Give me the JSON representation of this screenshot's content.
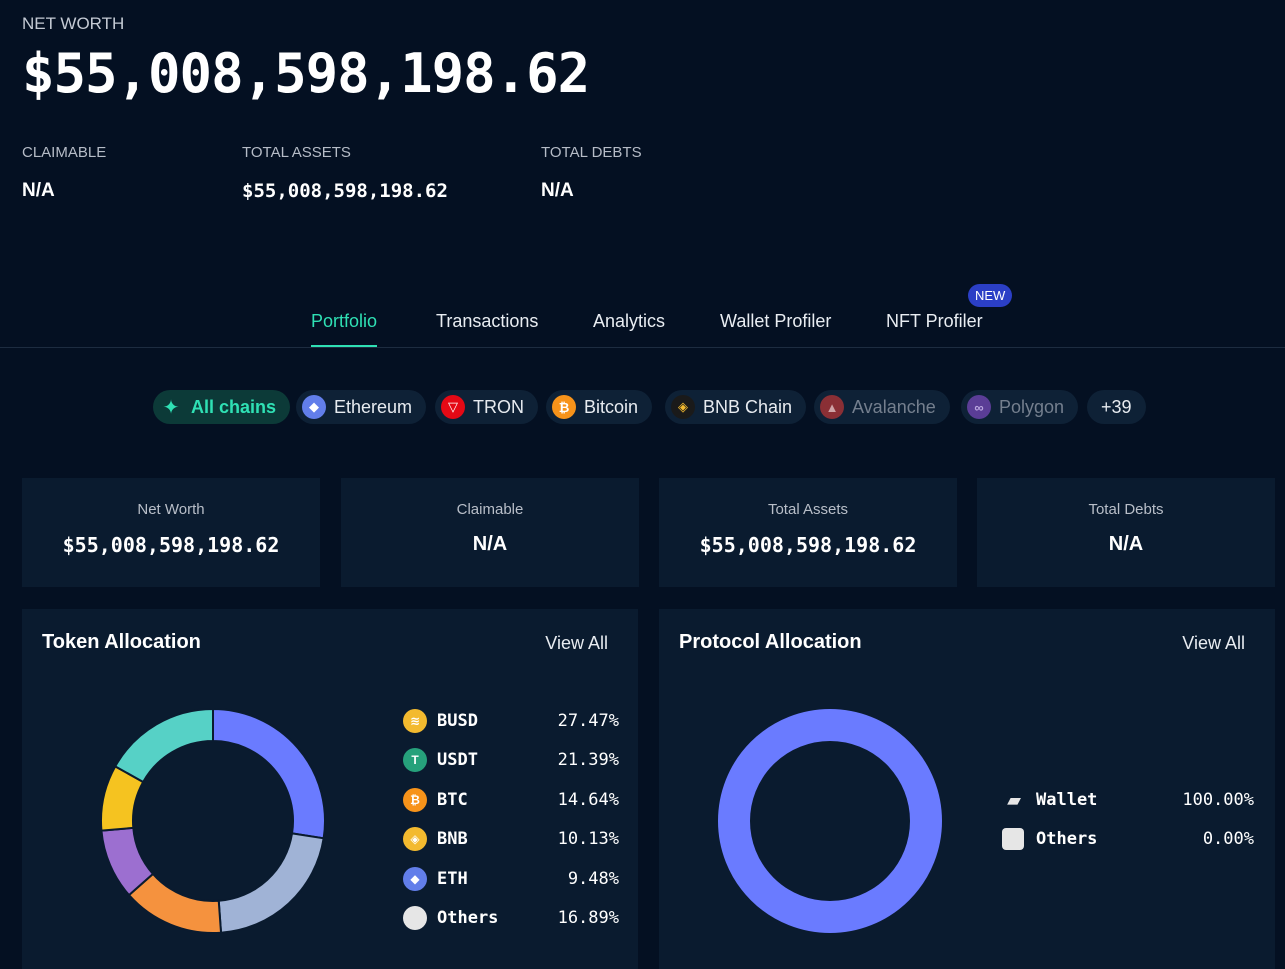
{
  "header": {
    "net_worth_label": "NET WORTH",
    "net_worth_value": "$55,008,598,198.62",
    "claimable_label": "CLAIMABLE",
    "claimable_value": "N/A",
    "total_assets_label": "TOTAL ASSETS",
    "total_assets_value": "$55,008,598,198.62",
    "total_debts_label": "TOTAL DEBTS",
    "total_debts_value": "N/A"
  },
  "tabs": [
    {
      "label": "Portfolio",
      "active": true
    },
    {
      "label": "Transactions",
      "active": false
    },
    {
      "label": "Analytics",
      "active": false
    },
    {
      "label": "Wallet Profiler",
      "active": false
    },
    {
      "label": "NFT Profiler",
      "active": false
    }
  ],
  "new_badge": "NEW",
  "chains": [
    {
      "label": "All chains",
      "icon": "sparkle-icon",
      "color": "#2fe0b4"
    },
    {
      "label": "Ethereum",
      "icon": "ethereum-icon",
      "color": "#627eea"
    },
    {
      "label": "TRON",
      "icon": "tron-icon",
      "color": "#e50915"
    },
    {
      "label": "Bitcoin",
      "icon": "bitcoin-icon",
      "color": "#f7931a"
    },
    {
      "label": "BNB Chain",
      "icon": "bnb-icon",
      "color": "#f3ba2f"
    },
    {
      "label": "Avalanche",
      "icon": "avalanche-icon",
      "color": "#8a2f35"
    },
    {
      "label": "Polygon",
      "icon": "polygon-icon",
      "color": "#5b3d96"
    },
    {
      "label": "+39"
    }
  ],
  "cards": [
    {
      "label": "Net Worth",
      "value": "$55,008,598,198.62"
    },
    {
      "label": "Claimable",
      "value": "N/A"
    },
    {
      "label": "Total Assets",
      "value": "$55,008,598,198.62"
    },
    {
      "label": "Total Debts",
      "value": "N/A"
    }
  ],
  "token_allocation": {
    "title": "Token Allocation",
    "view_all": "View All",
    "items": [
      {
        "name": "BUSD",
        "pct": "27.47%",
        "value": 27.47,
        "color": "#6a7bff",
        "icon_color": "#f3ba2f",
        "icon": "busd-icon"
      },
      {
        "name": "USDT",
        "pct": "21.39%",
        "value": 21.39,
        "color": "#a0b3d6",
        "icon_color": "#26a17b",
        "icon": "usdt-icon"
      },
      {
        "name": "BTC",
        "pct": "14.64%",
        "value": 14.64,
        "color": "#f5923e",
        "icon_color": "#f7931a",
        "icon": "bitcoin-icon"
      },
      {
        "name": "BNB",
        "pct": "10.13%",
        "value": 10.13,
        "color": "#9c6fd0",
        "icon_color": "#f3ba2f",
        "icon": "bnb-icon"
      },
      {
        "name": "ETH",
        "pct": "9.48%",
        "value": 9.48,
        "color": "#f5c320",
        "icon_color": "#627eea",
        "icon": "ethereum-icon"
      },
      {
        "name": "Others",
        "pct": "16.89%",
        "value": 16.89,
        "color": "#56d1c6",
        "icon_color": "#e6e6e6",
        "icon": "others-icon"
      }
    ]
  },
  "protocol_allocation": {
    "title": "Protocol Allocation",
    "view_all": "View All",
    "items": [
      {
        "name": "Wallet",
        "pct": "100.00%",
        "value": 100.0,
        "color": "#6a7bff",
        "icon": "wallet-icon"
      },
      {
        "name": "Others",
        "pct": "0.00%",
        "value": 0.0,
        "color": "#e6e6e6",
        "icon": "others-icon"
      }
    ]
  }
}
